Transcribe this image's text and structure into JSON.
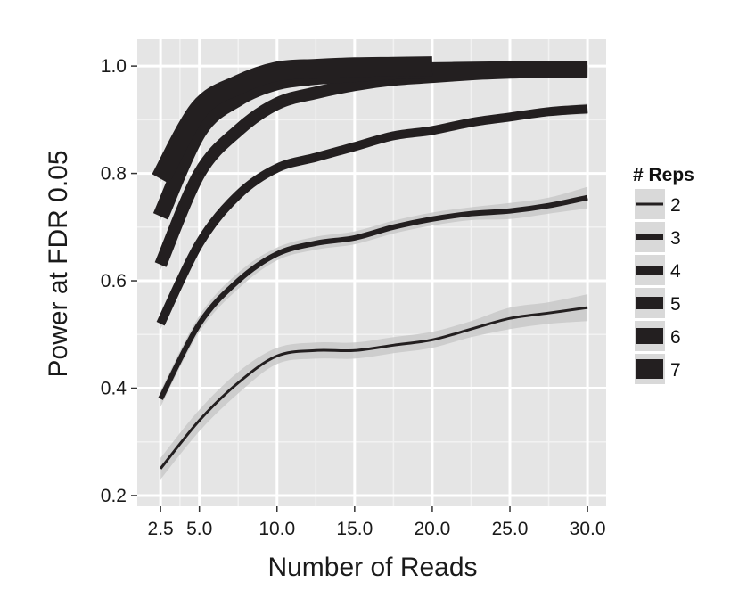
{
  "chart_data": {
    "type": "line",
    "xlabel": "Number of Reads",
    "ylabel": "Power at FDR 0.05",
    "xlim": [
      1.0,
      31.2
    ],
    "ylim": [
      0.18,
      1.05
    ],
    "xticks": [
      2.5,
      5.0,
      10.0,
      15.0,
      20.0,
      25.0,
      30.0
    ],
    "xtick_labels": [
      "2.5",
      "5.0",
      "10.0",
      "15.0",
      "20.0",
      "25.0",
      "30.0"
    ],
    "yticks": [
      0.2,
      0.4,
      0.6,
      0.8,
      1.0
    ],
    "ytick_labels": [
      "0.2",
      "0.4",
      "0.6",
      "0.8",
      "1.0"
    ],
    "grid": true,
    "legend": {
      "title": "# Reps",
      "position": "right"
    },
    "line_color": "#231f20",
    "ribbon_color": "#c4c4c4",
    "panel_color": "#e5e5e5",
    "series": [
      {
        "name": "2",
        "x": [
          2.5,
          5,
          7.5,
          10,
          12.5,
          15,
          17.5,
          20,
          22.5,
          25,
          27.5,
          30
        ],
        "values": [
          0.25,
          0.34,
          0.41,
          0.46,
          0.47,
          0.47,
          0.48,
          0.49,
          0.51,
          0.53,
          0.54,
          0.55
        ],
        "se": [
          0.02,
          0.02,
          0.02,
          0.015,
          0.015,
          0.015,
          0.015,
          0.015,
          0.015,
          0.02,
          0.02,
          0.025
        ]
      },
      {
        "name": "3",
        "x": [
          2.5,
          5,
          7.5,
          10,
          12.5,
          15,
          17.5,
          20,
          22.5,
          25,
          27.5,
          30
        ],
        "values": [
          0.38,
          0.52,
          0.6,
          0.65,
          0.67,
          0.68,
          0.7,
          0.715,
          0.725,
          0.73,
          0.74,
          0.755
        ],
        "se": [
          0.015,
          0.015,
          0.015,
          0.012,
          0.012,
          0.012,
          0.012,
          0.012,
          0.012,
          0.015,
          0.015,
          0.02
        ]
      },
      {
        "name": "4",
        "x": [
          2.5,
          5,
          7.5,
          10,
          12.5,
          15,
          17.5,
          20,
          22.5,
          25,
          27.5,
          30
        ],
        "values": [
          0.52,
          0.67,
          0.76,
          0.81,
          0.83,
          0.85,
          0.87,
          0.88,
          0.895,
          0.905,
          0.915,
          0.92
        ],
        "se": [
          0.01,
          0.01,
          0.01,
          0.008,
          0.008,
          0.008,
          0.008,
          0.008,
          0.008,
          0.008,
          0.008,
          0.01
        ]
      },
      {
        "name": "5",
        "x": [
          2.5,
          5,
          7.5,
          10,
          12.5,
          15,
          17.5,
          20,
          22.5,
          25,
          27.5,
          30
        ],
        "values": [
          0.63,
          0.8,
          0.88,
          0.93,
          0.95,
          0.965,
          0.975,
          0.98,
          0.985,
          0.988,
          0.99,
          0.99
        ],
        "se": [
          0.01,
          0.01,
          0.008,
          0.006,
          0.005,
          0.005,
          0.005,
          0.005,
          0.004,
          0.004,
          0.004,
          0.004
        ]
      },
      {
        "name": "6",
        "x": [
          2.5,
          5,
          7.5,
          10,
          12.5,
          15,
          17.5,
          20,
          22.5,
          25,
          27.5,
          30
        ],
        "values": [
          0.72,
          0.88,
          0.94,
          0.97,
          0.98,
          0.985,
          0.99,
          0.992,
          0.993,
          0.994,
          0.995,
          0.995
        ],
        "se": [
          0.008,
          0.008,
          0.006,
          0.005,
          0.004,
          0.004,
          0.004,
          0.004,
          0.004,
          0.004,
          0.004,
          0.004
        ]
      },
      {
        "name": "7",
        "x": [
          2.5,
          5,
          7.5,
          10,
          12.5,
          15,
          17.5,
          20
        ],
        "values": [
          0.79,
          0.92,
          0.965,
          0.99,
          0.995,
          0.998,
          0.999,
          1.0
        ],
        "se": [
          0.006,
          0.006,
          0.005,
          0.004,
          0.003,
          0.003,
          0.003,
          0.003
        ]
      }
    ]
  }
}
